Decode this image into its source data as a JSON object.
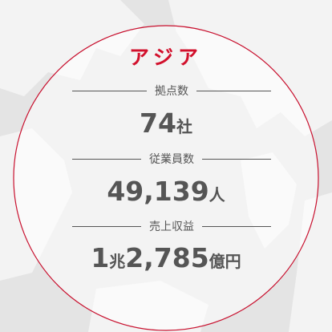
{
  "title": "アジア",
  "stats": [
    {
      "label": "拠点数",
      "parts": [
        "74",
        "社"
      ]
    },
    {
      "label": "従業員数",
      "parts": [
        "49,139",
        "人"
      ]
    },
    {
      "label": "売上収益",
      "parts": [
        "1",
        "兆",
        "2,785",
        "億円"
      ]
    }
  ]
}
